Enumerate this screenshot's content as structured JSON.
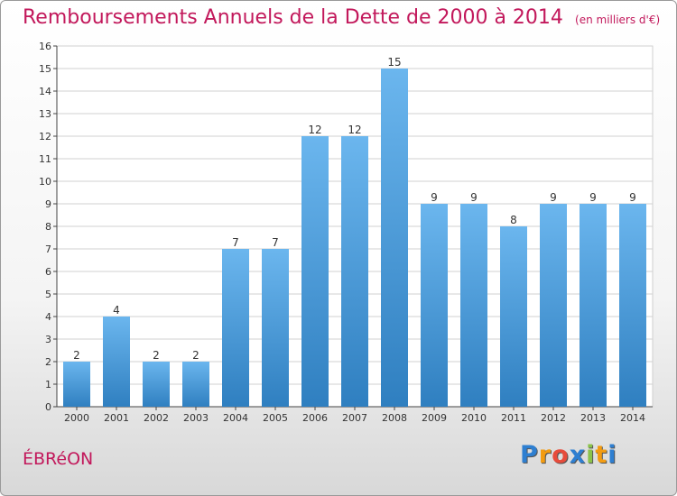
{
  "header": {
    "title": "Remboursements Annuels de la Dette de 2000 à 2014",
    "unit": "(en milliers d'€)"
  },
  "footer": {
    "commune": "ÉBRéON",
    "logo_letters": [
      "P",
      "r",
      "o",
      "x",
      "i",
      "t",
      "i"
    ],
    "logo_colors": [
      "#2e7fd1",
      "#f39c12",
      "#e74c3c",
      "#2e7fd1",
      "#8bc34a",
      "#f39c12",
      "#2e7fd1"
    ]
  },
  "colors": {
    "title": "#c2185b",
    "bar_top": "#6bb6ee",
    "bar_bottom": "#2f7fc0",
    "grid": "#d0d0d0",
    "axis": "#444444"
  },
  "chart_data": {
    "type": "bar",
    "categories": [
      "2000",
      "2001",
      "2002",
      "2003",
      "2004",
      "2005",
      "2006",
      "2007",
      "2008",
      "2009",
      "2010",
      "2011",
      "2012",
      "2013",
      "2014"
    ],
    "values": [
      2,
      4,
      2,
      2,
      7,
      7,
      12,
      12,
      15,
      9,
      9,
      8,
      9,
      9,
      9
    ],
    "ylim": [
      0,
      16
    ],
    "yticks": [
      0,
      1,
      2,
      3,
      4,
      5,
      6,
      7,
      8,
      9,
      10,
      11,
      12,
      13,
      14,
      15,
      16
    ],
    "grid": true,
    "legend": "none"
  }
}
